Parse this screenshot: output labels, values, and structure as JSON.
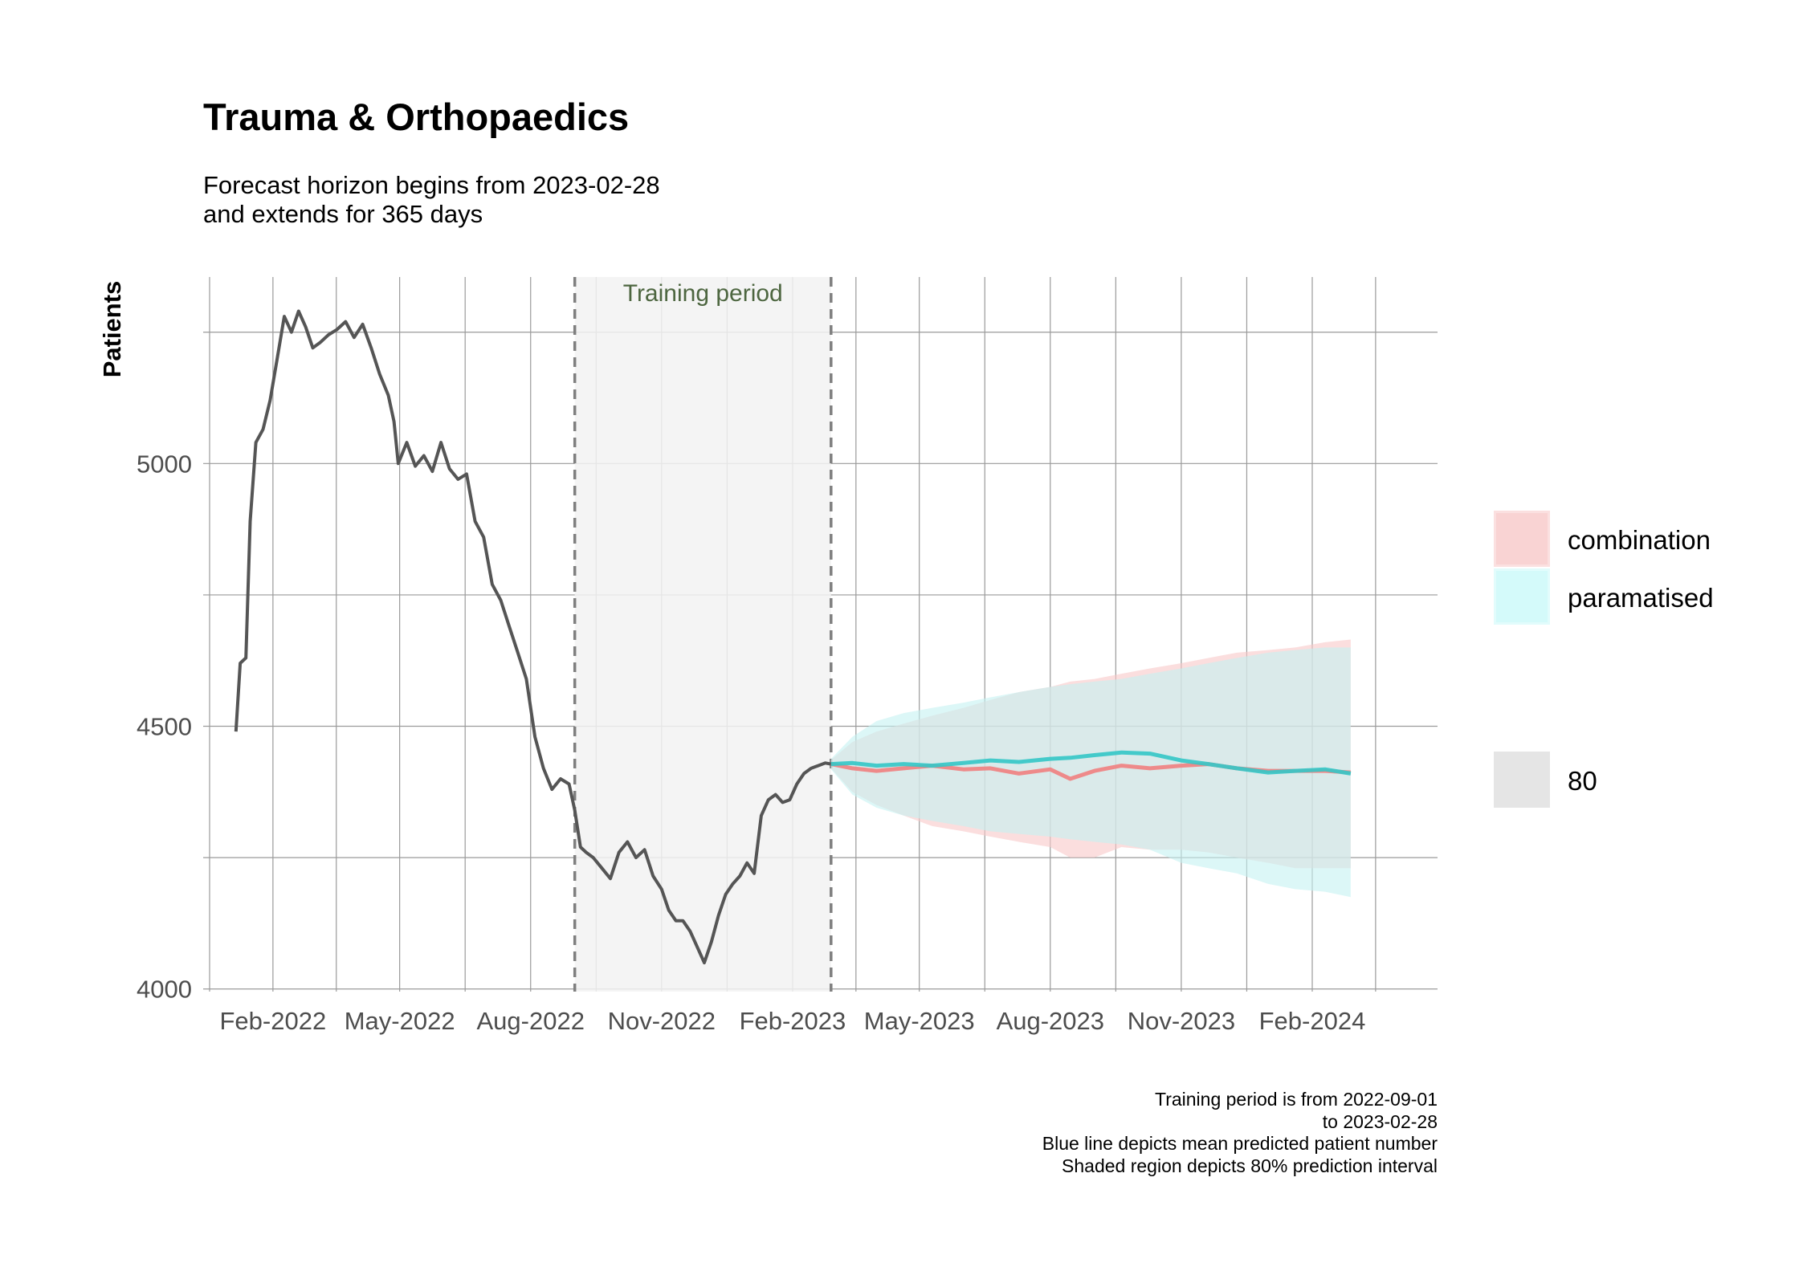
{
  "chart_data": {
    "type": "line",
    "title": "Trauma & Orthopaedics",
    "subtitle_lines": [
      "Forecast horizon begins from 2023-02-28",
      "and extends for 365 days"
    ],
    "ylabel": "Patients",
    "xlabel": "",
    "ylim": [
      3995,
      5355
    ],
    "xlim": [
      "2021-12-14",
      "2024-04-29"
    ],
    "y_ticks": [
      4000,
      4500,
      5000
    ],
    "x_ticks": [
      {
        "date": "2022-02-01",
        "label": "Feb-2022"
      },
      {
        "date": "2022-05-01",
        "label": "May-2022"
      },
      {
        "date": "2022-08-01",
        "label": "Aug-2022"
      },
      {
        "date": "2022-11-01",
        "label": "Nov-2022"
      },
      {
        "date": "2023-02-01",
        "label": "Feb-2023"
      },
      {
        "date": "2023-05-01",
        "label": "May-2023"
      },
      {
        "date": "2023-08-01",
        "label": "Aug-2023"
      },
      {
        "date": "2023-11-01",
        "label": "Nov-2023"
      },
      {
        "date": "2024-02-01",
        "label": "Feb-2024"
      }
    ],
    "grid": true,
    "training_period": {
      "start": "2022-09-01",
      "end": "2023-02-28",
      "label": "Training period"
    },
    "historical": {
      "color": "#555555",
      "points": [
        [
          "2022-01-06",
          4490
        ],
        [
          "2022-01-09",
          4620
        ],
        [
          "2022-01-13",
          4630
        ],
        [
          "2022-01-16",
          4890
        ],
        [
          "2022-01-20",
          5040
        ],
        [
          "2022-01-25",
          5065
        ],
        [
          "2022-01-30",
          5120
        ],
        [
          "2022-02-04",
          5200
        ],
        [
          "2022-02-09",
          5280
        ],
        [
          "2022-02-14",
          5250
        ],
        [
          "2022-02-19",
          5290
        ],
        [
          "2022-02-24",
          5260
        ],
        [
          "2022-03-01",
          5220
        ],
        [
          "2022-03-06",
          5230
        ],
        [
          "2022-03-12",
          5245
        ],
        [
          "2022-03-18",
          5255
        ],
        [
          "2022-03-24",
          5270
        ],
        [
          "2022-03-30",
          5240
        ],
        [
          "2022-04-05",
          5265
        ],
        [
          "2022-04-11",
          5220
        ],
        [
          "2022-04-17",
          5170
        ],
        [
          "2022-04-23",
          5130
        ],
        [
          "2022-04-27",
          5080
        ],
        [
          "2022-04-30",
          5000
        ],
        [
          "2022-05-06",
          5040
        ],
        [
          "2022-05-12",
          4995
        ],
        [
          "2022-05-18",
          5015
        ],
        [
          "2022-05-24",
          4985
        ],
        [
          "2022-05-30",
          5040
        ],
        [
          "2022-06-05",
          4990
        ],
        [
          "2022-06-11",
          4970
        ],
        [
          "2022-06-17",
          4980
        ],
        [
          "2022-06-23",
          4890
        ],
        [
          "2022-06-29",
          4860
        ],
        [
          "2022-07-05",
          4770
        ],
        [
          "2022-07-11",
          4740
        ],
        [
          "2022-07-17",
          4690
        ],
        [
          "2022-07-23",
          4640
        ],
        [
          "2022-07-29",
          4590
        ],
        [
          "2022-08-04",
          4480
        ],
        [
          "2022-08-10",
          4420
        ],
        [
          "2022-08-16",
          4380
        ],
        [
          "2022-08-22",
          4400
        ],
        [
          "2022-08-28",
          4390
        ],
        [
          "2022-09-01",
          4340
        ],
        [
          "2022-09-05",
          4270
        ],
        [
          "2022-09-09",
          4260
        ],
        [
          "2022-09-14",
          4250
        ],
        [
          "2022-09-20",
          4230
        ],
        [
          "2022-09-26",
          4210
        ],
        [
          "2022-10-02",
          4260
        ],
        [
          "2022-10-08",
          4280
        ],
        [
          "2022-10-14",
          4250
        ],
        [
          "2022-10-20",
          4265
        ],
        [
          "2022-10-26",
          4215
        ],
        [
          "2022-11-01",
          4190
        ],
        [
          "2022-11-06",
          4150
        ],
        [
          "2022-11-11",
          4130
        ],
        [
          "2022-11-16",
          4130
        ],
        [
          "2022-11-21",
          4110
        ],
        [
          "2022-11-26",
          4080
        ],
        [
          "2022-12-01",
          4050
        ],
        [
          "2022-12-06",
          4090
        ],
        [
          "2022-12-11",
          4140
        ],
        [
          "2022-12-16",
          4180
        ],
        [
          "2022-12-21",
          4200
        ],
        [
          "2022-12-26",
          4215
        ],
        [
          "2022-12-31",
          4240
        ],
        [
          "2023-01-05",
          4220
        ],
        [
          "2023-01-10",
          4330
        ],
        [
          "2023-01-15",
          4360
        ],
        [
          "2023-01-20",
          4370
        ],
        [
          "2023-01-25",
          4355
        ],
        [
          "2023-01-30",
          4360
        ],
        [
          "2023-02-04",
          4390
        ],
        [
          "2023-02-09",
          4410
        ],
        [
          "2023-02-14",
          4420
        ],
        [
          "2023-02-19",
          4425
        ],
        [
          "2023-02-24",
          4430
        ],
        [
          "2023-02-28",
          4428
        ]
      ]
    },
    "series": [
      {
        "name": "combination",
        "color": "#f08080",
        "fill": "#f9c8c8",
        "mean": [
          [
            "2023-02-28",
            4428
          ],
          [
            "2023-03-15",
            4420
          ],
          [
            "2023-04-01",
            4415
          ],
          [
            "2023-04-20",
            4420
          ],
          [
            "2023-05-10",
            4425
          ],
          [
            "2023-06-01",
            4418
          ],
          [
            "2023-06-20",
            4420
          ],
          [
            "2023-07-10",
            4410
          ],
          [
            "2023-08-01",
            4418
          ],
          [
            "2023-08-15",
            4400
          ],
          [
            "2023-09-01",
            4415
          ],
          [
            "2023-09-20",
            4425
          ],
          [
            "2023-10-10",
            4420
          ],
          [
            "2023-11-01",
            4425
          ],
          [
            "2023-11-20",
            4428
          ],
          [
            "2023-12-10",
            4420
          ],
          [
            "2024-01-01",
            4415
          ],
          [
            "2024-01-20",
            4415
          ],
          [
            "2024-02-10",
            4415
          ],
          [
            "2024-02-28",
            4412
          ]
        ],
        "lower": [
          [
            "2023-02-28",
            4420
          ],
          [
            "2023-03-15",
            4375
          ],
          [
            "2023-04-01",
            4350
          ],
          [
            "2023-04-20",
            4330
          ],
          [
            "2023-05-10",
            4310
          ],
          [
            "2023-06-01",
            4300
          ],
          [
            "2023-06-20",
            4290
          ],
          [
            "2023-07-10",
            4280
          ],
          [
            "2023-08-01",
            4270
          ],
          [
            "2023-08-15",
            4250
          ],
          [
            "2023-09-01",
            4250
          ],
          [
            "2023-09-20",
            4270
          ],
          [
            "2023-10-10",
            4265
          ],
          [
            "2023-11-01",
            4265
          ],
          [
            "2023-11-20",
            4260
          ],
          [
            "2023-12-10",
            4250
          ],
          [
            "2024-01-01",
            4240
          ],
          [
            "2024-01-20",
            4230
          ],
          [
            "2024-02-10",
            4230
          ],
          [
            "2024-02-28",
            4230
          ]
        ],
        "upper": [
          [
            "2023-02-28",
            4436
          ],
          [
            "2023-03-15",
            4470
          ],
          [
            "2023-04-01",
            4490
          ],
          [
            "2023-04-20",
            4505
          ],
          [
            "2023-05-10",
            4520
          ],
          [
            "2023-06-01",
            4535
          ],
          [
            "2023-06-20",
            4550
          ],
          [
            "2023-07-10",
            4565
          ],
          [
            "2023-08-01",
            4575
          ],
          [
            "2023-08-15",
            4585
          ],
          [
            "2023-09-01",
            4590
          ],
          [
            "2023-09-20",
            4600
          ],
          [
            "2023-10-10",
            4610
          ],
          [
            "2023-11-01",
            4620
          ],
          [
            "2023-11-20",
            4630
          ],
          [
            "2023-12-10",
            4640
          ],
          [
            "2024-01-01",
            4645
          ],
          [
            "2024-01-20",
            4650
          ],
          [
            "2024-02-10",
            4660
          ],
          [
            "2024-02-28",
            4665
          ]
        ]
      },
      {
        "name": "paramatised",
        "color": "#33c7c7",
        "fill": "#c4f2f2",
        "mean": [
          [
            "2023-02-28",
            4428
          ],
          [
            "2023-03-15",
            4430
          ],
          [
            "2023-04-01",
            4425
          ],
          [
            "2023-04-20",
            4428
          ],
          [
            "2023-05-10",
            4425
          ],
          [
            "2023-06-01",
            4430
          ],
          [
            "2023-06-20",
            4435
          ],
          [
            "2023-07-10",
            4432
          ],
          [
            "2023-08-01",
            4438
          ],
          [
            "2023-08-15",
            4440
          ],
          [
            "2023-09-01",
            4445
          ],
          [
            "2023-09-20",
            4450
          ],
          [
            "2023-10-10",
            4448
          ],
          [
            "2023-11-01",
            4435
          ],
          [
            "2023-11-20",
            4428
          ],
          [
            "2023-12-10",
            4420
          ],
          [
            "2024-01-01",
            4412
          ],
          [
            "2024-01-20",
            4415
          ],
          [
            "2024-02-10",
            4418
          ],
          [
            "2024-02-28",
            4410
          ]
        ],
        "lower": [
          [
            "2023-02-28",
            4418
          ],
          [
            "2023-03-15",
            4370
          ],
          [
            "2023-04-01",
            4345
          ],
          [
            "2023-04-20",
            4330
          ],
          [
            "2023-05-10",
            4320
          ],
          [
            "2023-06-01",
            4310
          ],
          [
            "2023-06-20",
            4300
          ],
          [
            "2023-07-10",
            4295
          ],
          [
            "2023-08-01",
            4290
          ],
          [
            "2023-08-15",
            4285
          ],
          [
            "2023-09-01",
            4280
          ],
          [
            "2023-09-20",
            4275
          ],
          [
            "2023-10-10",
            4265
          ],
          [
            "2023-11-01",
            4240
          ],
          [
            "2023-11-20",
            4230
          ],
          [
            "2023-12-10",
            4220
          ],
          [
            "2024-01-01",
            4200
          ],
          [
            "2024-01-20",
            4190
          ],
          [
            "2024-02-10",
            4185
          ],
          [
            "2024-02-28",
            4175
          ]
        ],
        "upper": [
          [
            "2023-02-28",
            4438
          ],
          [
            "2023-03-15",
            4480
          ],
          [
            "2023-04-01",
            4510
          ],
          [
            "2023-04-20",
            4525
          ],
          [
            "2023-05-10",
            4535
          ],
          [
            "2023-06-01",
            4545
          ],
          [
            "2023-06-20",
            4555
          ],
          [
            "2023-07-10",
            4565
          ],
          [
            "2023-08-01",
            4575
          ],
          [
            "2023-08-15",
            4580
          ],
          [
            "2023-09-01",
            4585
          ],
          [
            "2023-09-20",
            4590
          ],
          [
            "2023-10-10",
            4600
          ],
          [
            "2023-11-01",
            4610
          ],
          [
            "2023-11-20",
            4620
          ],
          [
            "2023-12-10",
            4630
          ],
          [
            "2024-01-01",
            4640
          ],
          [
            "2024-01-20",
            4645
          ],
          [
            "2024-02-10",
            4650
          ],
          [
            "2024-02-28",
            4650
          ]
        ]
      }
    ],
    "legend": {
      "position": "right",
      "fill_entries": [
        {
          "label": "combination",
          "fill": "#f9d3d3",
          "border": "#fbe0e0"
        },
        {
          "label": "paramatised",
          "fill": "#d4fafa",
          "border": "#e2fcfc"
        }
      ],
      "level_entry": {
        "label": "80",
        "fill": "#e5e5e5"
      }
    },
    "caption_lines": [
      "Training period is from 2022-09-01",
      "to 2023-02-28",
      "Blue line depicts mean predicted patient number",
      "Shaded region depicts 80% prediction interval"
    ]
  }
}
